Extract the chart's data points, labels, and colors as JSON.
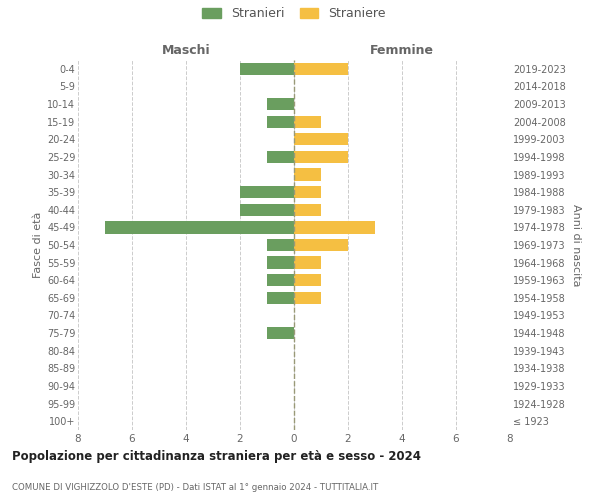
{
  "age_groups": [
    "100+",
    "95-99",
    "90-94",
    "85-89",
    "80-84",
    "75-79",
    "70-74",
    "65-69",
    "60-64",
    "55-59",
    "50-54",
    "45-49",
    "40-44",
    "35-39",
    "30-34",
    "25-29",
    "20-24",
    "15-19",
    "10-14",
    "5-9",
    "0-4"
  ],
  "birth_years": [
    "≤ 1923",
    "1924-1928",
    "1929-1933",
    "1934-1938",
    "1939-1943",
    "1944-1948",
    "1949-1953",
    "1954-1958",
    "1959-1963",
    "1964-1968",
    "1969-1973",
    "1974-1978",
    "1979-1983",
    "1984-1988",
    "1989-1993",
    "1994-1998",
    "1999-2003",
    "2004-2008",
    "2009-2013",
    "2014-2018",
    "2019-2023"
  ],
  "maschi": [
    0,
    0,
    0,
    0,
    0,
    1,
    0,
    1,
    1,
    1,
    1,
    7,
    2,
    2,
    0,
    1,
    0,
    1,
    1,
    0,
    2
  ],
  "femmine": [
    0,
    0,
    0,
    0,
    0,
    0,
    0,
    1,
    1,
    1,
    2,
    3,
    1,
    1,
    1,
    2,
    2,
    1,
    0,
    0,
    2
  ],
  "color_maschi": "#6a9e5f",
  "color_femmine": "#f5bf42",
  "title_main": "Popolazione per cittadinanza straniera per età e sesso - 2024",
  "title_sub": "COMUNE DI VIGHIZZOLO D'ESTE (PD) - Dati ISTAT al 1° gennaio 2024 - TUTTITALIA.IT",
  "ylabel_left": "Fasce di età",
  "ylabel_right": "Anni di nascita",
  "xlabel_left": "Maschi",
  "xlabel_right": "Femmine",
  "legend_maschi": "Stranieri",
  "legend_femmine": "Straniere",
  "xlim": 8,
  "background_color": "#ffffff",
  "grid_color": "#cccccc"
}
